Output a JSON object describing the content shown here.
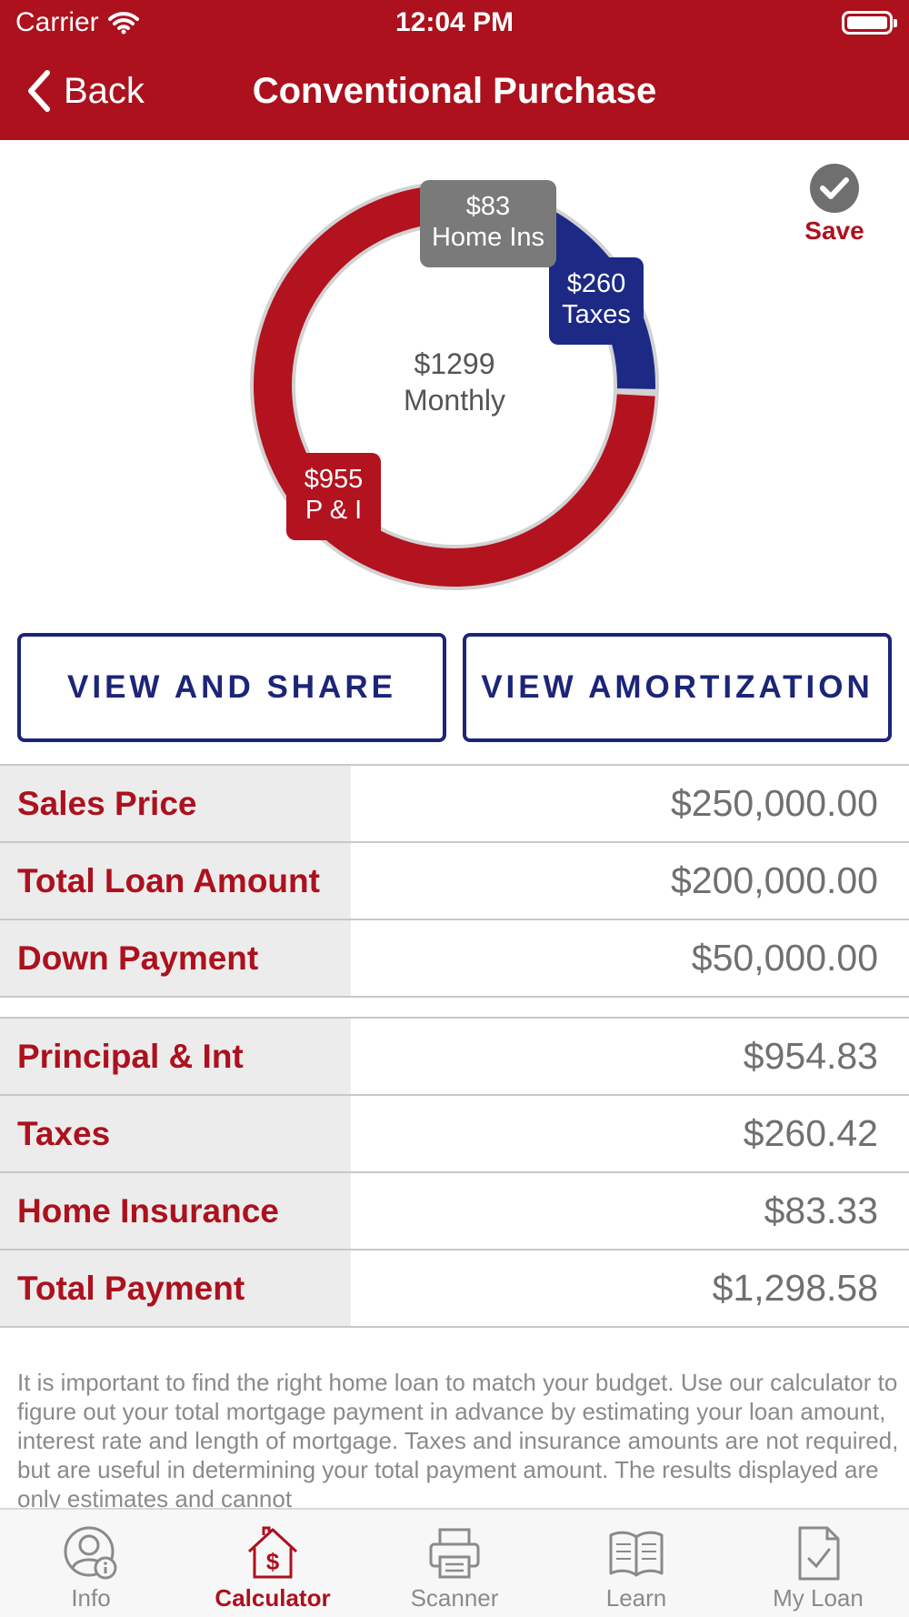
{
  "status_bar": {
    "carrier": "Carrier",
    "time": "12:04 PM"
  },
  "nav": {
    "back_label": "Back",
    "title": "Conventional Purchase"
  },
  "chart_data": {
    "type": "pie",
    "variant": "donut",
    "center_value": "$1299",
    "center_label": "Monthly",
    "slices": [
      {
        "label": "P & I",
        "display": "$955",
        "value": 954.83,
        "color": "#b3121f"
      },
      {
        "label": "Taxes",
        "display": "$260",
        "value": 260.42,
        "color": "#1c2a86"
      },
      {
        "label": "Home Ins",
        "display": "$83",
        "value": 83.33,
        "color": "#7a7a7a"
      }
    ]
  },
  "save": {
    "label": "Save"
  },
  "buttons": {
    "view_share": "VIEW AND SHARE",
    "view_amortization": "VIEW AMORTIZATION"
  },
  "loan_table": [
    {
      "label": "Sales Price",
      "value": "$250,000.00"
    },
    {
      "label": "Total Loan Amount",
      "value": "$200,000.00"
    },
    {
      "label": "Down Payment",
      "value": "$50,000.00"
    }
  ],
  "payment_table": [
    {
      "label": "Principal & Int",
      "value": "$954.83"
    },
    {
      "label": "Taxes",
      "value": "$260.42"
    },
    {
      "label": "Home Insurance",
      "value": "$83.33"
    },
    {
      "label": "Total Payment",
      "value": "$1,298.58"
    }
  ],
  "disclaimer": "It is important to find the right home loan to match your budget. Use our calculator to figure out your total mortgage payment in advance by estimating your loan amount, interest rate and length of mortgage. Taxes and insurance amounts are not required, but are useful in determining your total payment amount.  The results displayed are only estimates and cannot",
  "tabs": [
    {
      "label": "Info",
      "icon": "user-info-icon",
      "active": false
    },
    {
      "label": "Calculator",
      "icon": "house-dollar-icon",
      "active": true
    },
    {
      "label": "Scanner",
      "icon": "printer-icon",
      "active": false
    },
    {
      "label": "Learn",
      "icon": "open-book-icon",
      "active": false
    },
    {
      "label": "My Loan",
      "icon": "document-check-icon",
      "active": false
    }
  ],
  "colors": {
    "brand_red": "#ac111d",
    "accent_navy": "#1c2577",
    "row_label_bg": "#ececec"
  }
}
